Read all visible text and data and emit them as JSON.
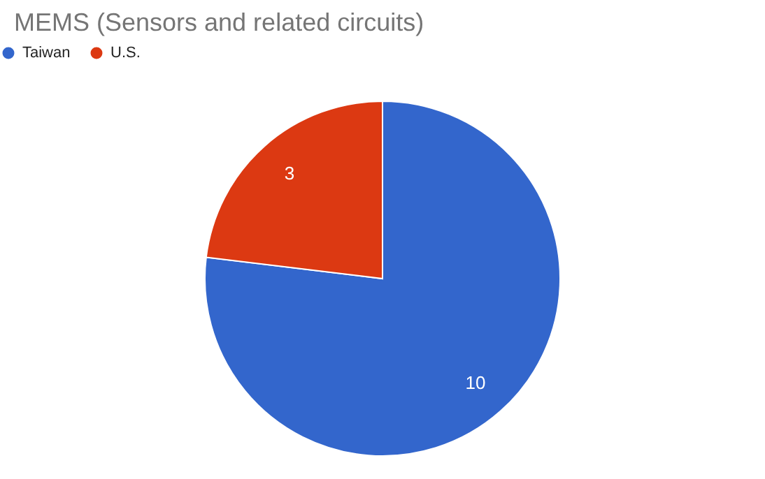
{
  "chart_data": {
    "type": "pie",
    "title": "MEMS (Sensors and related circuits)",
    "categories": [
      "Taiwan",
      "U.S."
    ],
    "values": [
      10,
      3
    ],
    "colors": [
      "#3366cc",
      "#dc3912"
    ],
    "data_labels": true,
    "legend": "top"
  }
}
